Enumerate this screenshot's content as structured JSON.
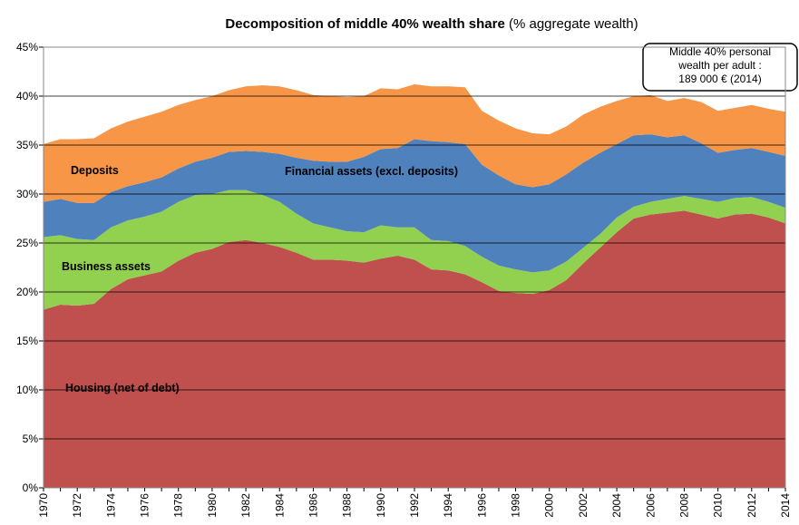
{
  "chart_data": {
    "type": "stacked_area",
    "title": "Decomposition of middle 40% wealth share",
    "title_note": "(% aggregate wealth)",
    "annotation": [
      "Middle 40% personal",
      "wealth per adult :",
      "189 000 € (2014)"
    ],
    "categories": [
      "1970",
      null,
      "1972",
      null,
      "1974",
      null,
      "1976",
      null,
      "1978",
      null,
      "1980",
      null,
      "1982",
      null,
      "1984",
      null,
      "1986",
      null,
      "1988",
      null,
      "1990",
      null,
      "1992",
      null,
      "1994",
      null,
      "1996",
      null,
      "1998",
      null,
      "2000",
      null,
      "2002",
      null,
      "2004",
      null,
      "2006",
      null,
      "2008",
      null,
      "2010",
      null,
      "2012",
      null,
      "2014"
    ],
    "series": [
      {
        "name": "Housing (net of debt)",
        "color": "#c0504d",
        "values": [
          18.2,
          18.7,
          18.6,
          18.8,
          20.3,
          21.3,
          21.7,
          22.1,
          23.2,
          24.0,
          24.4,
          25.1,
          25.3,
          25.0,
          24.6,
          24.0,
          23.3,
          23.3,
          23.2,
          23.0,
          23.4,
          23.7,
          23.3,
          22.3,
          22.2,
          21.8,
          21.0,
          20.1,
          19.9,
          19.8,
          20.2,
          21.2,
          22.9,
          24.5,
          26.1,
          27.5,
          27.9,
          28.1,
          28.3,
          27.9,
          27.5,
          27.9,
          28.0,
          27.6,
          27.0
        ]
      },
      {
        "name": "Business assets",
        "color": "#92d050",
        "values": [
          7.4,
          7.1,
          6.8,
          6.5,
          6.3,
          6.0,
          6.0,
          6.1,
          6.0,
          5.9,
          5.6,
          5.3,
          5.1,
          4.9,
          4.6,
          4.0,
          3.7,
          3.3,
          3.0,
          3.1,
          3.4,
          2.9,
          3.3,
          3.0,
          3.0,
          2.9,
          2.6,
          2.6,
          2.4,
          2.2,
          2.0,
          1.9,
          1.6,
          1.4,
          1.5,
          1.2,
          1.3,
          1.4,
          1.5,
          1.6,
          1.7,
          1.7,
          1.7,
          1.6,
          1.6
        ]
      },
      {
        "name": "Financial assets  (excl. deposits)",
        "color": "#4f81bd",
        "values": [
          3.6,
          3.7,
          3.7,
          3.8,
          3.6,
          3.5,
          3.5,
          3.5,
          3.4,
          3.4,
          3.7,
          3.9,
          4.0,
          4.4,
          4.9,
          5.7,
          6.4,
          6.7,
          7.1,
          7.7,
          7.8,
          8.1,
          9.0,
          10.1,
          10.1,
          10.4,
          9.4,
          9.2,
          8.7,
          8.7,
          8.8,
          8.9,
          8.7,
          8.3,
          7.5,
          7.3,
          6.9,
          6.3,
          6.2,
          5.7,
          5.0,
          4.9,
          5.0,
          5.1,
          5.3
        ]
      },
      {
        "name": "Deposits",
        "color": "#f79646",
        "values": [
          5.9,
          6.1,
          6.5,
          6.6,
          6.5,
          6.6,
          6.7,
          6.7,
          6.5,
          6.3,
          6.3,
          6.3,
          6.6,
          6.8,
          6.9,
          6.9,
          6.7,
          6.7,
          6.6,
          6.2,
          6.2,
          6.0,
          5.6,
          5.6,
          5.7,
          5.8,
          5.5,
          5.6,
          5.7,
          5.5,
          5.1,
          4.9,
          4.9,
          4.7,
          4.4,
          4.0,
          4.0,
          3.7,
          3.8,
          4.2,
          4.3,
          4.3,
          4.4,
          4.4,
          4.5
        ]
      }
    ],
    "ylim": [
      0,
      45
    ],
    "yticks": [
      {
        "value": 0,
        "label": "0%"
      },
      {
        "value": 5,
        "label": "5%"
      },
      {
        "value": 10,
        "label": "10%"
      },
      {
        "value": 15,
        "label": "15%"
      },
      {
        "value": 20,
        "label": "20%"
      },
      {
        "value": 25,
        "label": "25%"
      },
      {
        "value": 30,
        "label": "30%"
      },
      {
        "value": 35,
        "label": "35%"
      },
      {
        "value": 40,
        "label": "40%"
      },
      {
        "value": 45,
        "label": "45%"
      }
    ],
    "grid": true
  }
}
